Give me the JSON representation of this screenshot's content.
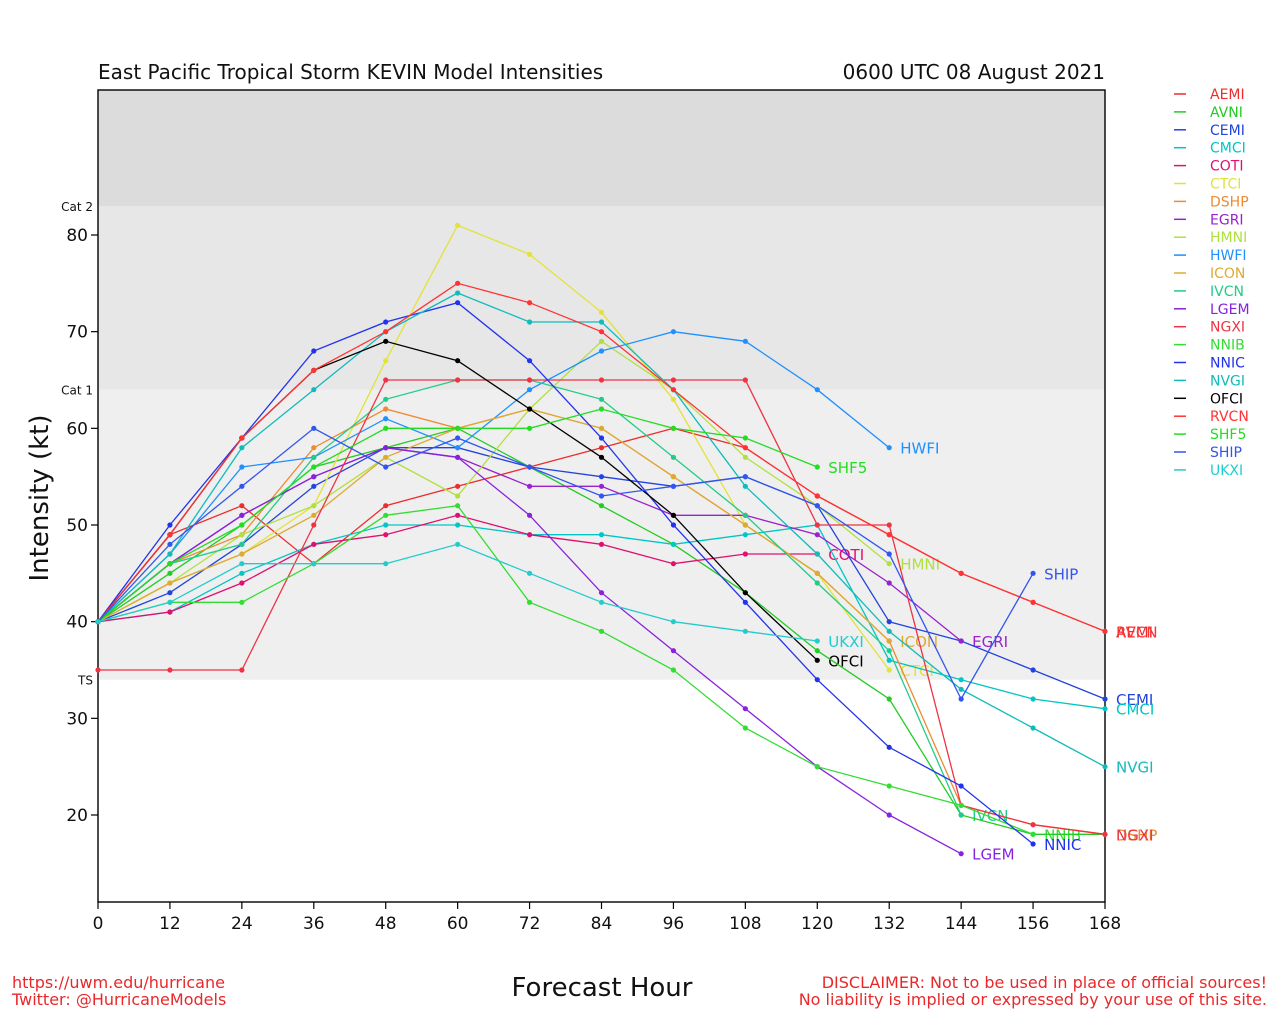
{
  "chart_data": {
    "type": "line",
    "title": "East Pacific Tropical Storm KEVIN Model Intensities",
    "subtitle": "0600 UTC 08 August 2021",
    "xlabel": "Forecast Hour",
    "ylabel": "Intensity (kt)",
    "xlim": [
      0,
      168
    ],
    "ylim": [
      11,
      95
    ],
    "xticks": [
      "0",
      "12",
      "24",
      "36",
      "48",
      "60",
      "72",
      "84",
      "96",
      "108",
      "120",
      "132",
      "144",
      "156",
      "168"
    ],
    "yticks": [
      "20",
      "30",
      "40",
      "50",
      "60",
      "70",
      "80"
    ],
    "bands": [
      {
        "label": "TS",
        "from": 34,
        "to": 64,
        "color": "#efefef"
      },
      {
        "label": "Cat 1",
        "from": 64,
        "to": 83,
        "color": "#e7e7e7"
      },
      {
        "label": "Cat 2",
        "from": 83,
        "to": 95,
        "color": "#dcdcdc"
      }
    ],
    "legend_position": "right",
    "series": [
      {
        "name": "AEMI",
        "color": "#ee2c2c",
        "x": [
          0,
          12,
          24,
          36,
          48,
          60,
          72,
          84,
          96,
          108,
          120,
          132,
          144,
          156,
          168
        ],
        "values": [
          40,
          49,
          52,
          46,
          52,
          54,
          56,
          58,
          60,
          58,
          53,
          49,
          45,
          42,
          39
        ],
        "end_label": "AEMI"
      },
      {
        "name": "AVNI",
        "color": "#22cc22",
        "x": [
          0,
          12,
          24,
          36,
          48,
          60,
          72,
          84,
          96,
          108,
          120,
          132,
          144,
          156,
          168
        ],
        "values": [
          40,
          45,
          50,
          56,
          58,
          60,
          56,
          52,
          48,
          43,
          37,
          32,
          20,
          18,
          18
        ],
        "end_label": ""
      },
      {
        "name": "CEMI",
        "color": "#2244dd",
        "x": [
          0,
          12,
          24,
          36,
          48,
          60,
          72,
          84,
          96,
          108,
          120,
          132,
          144,
          156,
          168
        ],
        "values": [
          40,
          43,
          48,
          54,
          58,
          58,
          56,
          55,
          54,
          55,
          52,
          40,
          38,
          35,
          32
        ],
        "end_label": "CEMI"
      },
      {
        "name": "CMCI",
        "color": "#00c6c6",
        "x": [
          0,
          12,
          24,
          36,
          48,
          60,
          72,
          84,
          96,
          108,
          120,
          132,
          144,
          156,
          168
        ],
        "values": [
          40,
          41,
          45,
          48,
          50,
          50,
          49,
          49,
          48,
          49,
          50,
          36,
          34,
          32,
          31
        ],
        "end_label": "CMCI"
      },
      {
        "name": "COTI",
        "color": "#e01070",
        "x": [
          0,
          12,
          24,
          36,
          48,
          60,
          72,
          84,
          96,
          108,
          120
        ],
        "values": [
          40,
          41,
          44,
          48,
          49,
          51,
          49,
          48,
          46,
          47,
          47
        ],
        "end_label": "COTI"
      },
      {
        "name": "CTCI",
        "color": "#e2e23a",
        "x": [
          0,
          12,
          24,
          36,
          48,
          60,
          72,
          84,
          96,
          108,
          120,
          132
        ],
        "values": [
          40,
          44,
          47,
          52,
          67,
          81,
          78,
          72,
          63,
          50,
          45,
          35
        ],
        "end_label": "CTCI"
      },
      {
        "name": "DSHP",
        "color": "#ee8a33",
        "x": [
          0,
          12,
          24,
          36,
          48,
          60,
          72,
          84,
          96,
          108,
          120,
          132,
          144,
          156,
          168
        ],
        "values": [
          40,
          46,
          49,
          58,
          62,
          60,
          62,
          60,
          55,
          50,
          45,
          38,
          21,
          19,
          18
        ],
        "end_label": "DSHP"
      },
      {
        "name": "EGRI",
        "color": "#9922cc",
        "x": [
          0,
          12,
          24,
          36,
          48,
          60,
          72,
          84,
          96,
          108,
          120,
          132,
          144
        ],
        "values": [
          40,
          46,
          51,
          55,
          58,
          57,
          54,
          54,
          51,
          51,
          49,
          44,
          38
        ],
        "end_label": "EGRI"
      },
      {
        "name": "HMNI",
        "color": "#b0e040",
        "x": [
          0,
          12,
          24,
          36,
          48,
          60,
          72,
          84,
          96,
          108,
          120,
          132
        ],
        "values": [
          40,
          44,
          49,
          52,
          57,
          53,
          62,
          69,
          64,
          57,
          52,
          46
        ],
        "end_label": "HMNI"
      },
      {
        "name": "HWFI",
        "color": "#1e90ff",
        "x": [
          0,
          12,
          24,
          36,
          48,
          60,
          72,
          84,
          96,
          108,
          120,
          132
        ],
        "values": [
          40,
          47,
          56,
          57,
          61,
          58,
          64,
          68,
          70,
          69,
          64,
          58
        ],
        "end_label": "HWFI"
      },
      {
        "name": "ICON",
        "color": "#ddaa33",
        "x": [
          0,
          12,
          24,
          36,
          48,
          60,
          72,
          84,
          96,
          108,
          120,
          132
        ],
        "values": [
          40,
          44,
          47,
          51,
          57,
          60,
          62,
          60,
          55,
          50,
          45,
          38
        ],
        "end_label": "ICON"
      },
      {
        "name": "IVCN",
        "color": "#22cc88",
        "x": [
          0,
          12,
          24,
          36,
          48,
          60,
          72,
          84,
          96,
          108,
          120,
          132,
          144
        ],
        "values": [
          40,
          46,
          48,
          57,
          63,
          65,
          65,
          63,
          57,
          51,
          44,
          37,
          20
        ],
        "end_label": "IVCN"
      },
      {
        "name": "LGEM",
        "color": "#8822dd",
        "x": [
          0,
          12,
          24,
          36,
          48,
          60,
          72,
          84,
          96,
          108,
          120,
          132,
          144
        ],
        "values": [
          40,
          46,
          51,
          55,
          58,
          57,
          51,
          43,
          37,
          31,
          25,
          20,
          16
        ],
        "end_label": "LGEM"
      },
      {
        "name": "NGXI",
        "color": "#ee3344",
        "x": [
          0,
          12,
          24,
          36,
          48,
          60,
          72,
          84,
          96,
          108,
          120,
          132,
          144,
          156,
          168
        ],
        "values": [
          35,
          35,
          35,
          50,
          65,
          65,
          65,
          65,
          65,
          65,
          50,
          50,
          21,
          19,
          18
        ],
        "end_label": "NGXI"
      },
      {
        "name": "NNIB",
        "color": "#33dd33",
        "x": [
          0,
          12,
          24,
          36,
          48,
          60,
          72,
          84,
          96,
          108,
          120,
          132,
          144,
          156
        ],
        "values": [
          40,
          42,
          42,
          46,
          51,
          52,
          42,
          39,
          35,
          29,
          25,
          23,
          21,
          18
        ],
        "end_label": "NNIB"
      },
      {
        "name": "NNIC",
        "color": "#2233ee",
        "x": [
          0,
          12,
          24,
          36,
          48,
          60,
          72,
          84,
          96,
          108,
          120,
          132,
          144,
          156
        ],
        "values": [
          40,
          50,
          59,
          68,
          71,
          73,
          67,
          59,
          50,
          42,
          34,
          27,
          23,
          17
        ],
        "end_label": "NNIC"
      },
      {
        "name": "NVGI",
        "color": "#11bbbb",
        "x": [
          0,
          12,
          24,
          36,
          48,
          60,
          72,
          84,
          96,
          108,
          120,
          132,
          144,
          156,
          168
        ],
        "values": [
          40,
          47,
          58,
          64,
          70,
          74,
          71,
          71,
          64,
          54,
          47,
          39,
          33,
          29,
          25
        ],
        "end_label": "NVGI"
      },
      {
        "name": "OFCI",
        "color": "#000000",
        "x": [
          0,
          12,
          24,
          36,
          48,
          60,
          72,
          84,
          96,
          108,
          120
        ],
        "values": [
          40,
          49,
          59,
          66,
          69,
          67,
          62,
          57,
          51,
          43,
          36
        ],
        "end_label": "OFCI"
      },
      {
        "name": "RVCN",
        "color": "#ff3333",
        "x": [
          0,
          12,
          24,
          36,
          48,
          60,
          72,
          84,
          96,
          108,
          120,
          132,
          144,
          156,
          168
        ],
        "values": [
          40,
          49,
          59,
          66,
          70,
          75,
          73,
          70,
          64,
          58,
          53,
          49,
          45,
          42,
          39
        ],
        "end_label": "RVCN"
      },
      {
        "name": "SHF5",
        "color": "#22dd22",
        "x": [
          0,
          12,
          24,
          36,
          48,
          60,
          72,
          84,
          96,
          108,
          120
        ],
        "values": [
          40,
          46,
          50,
          56,
          60,
          60,
          60,
          62,
          60,
          59,
          56
        ],
        "end_label": "SHF5"
      },
      {
        "name": "SHIP",
        "color": "#3355ee",
        "x": [
          0,
          12,
          24,
          36,
          48,
          60,
          72,
          84,
          96,
          108,
          120,
          132,
          144,
          156
        ],
        "values": [
          40,
          48,
          54,
          60,
          56,
          59,
          56,
          53,
          54,
          55,
          52,
          47,
          32,
          45
        ],
        "end_label": "SHIP"
      },
      {
        "name": "UKXI",
        "color": "#22cccc",
        "x": [
          0,
          12,
          24,
          36,
          48,
          60,
          72,
          84,
          96,
          108,
          120
        ],
        "values": [
          40,
          42,
          46,
          46,
          46,
          48,
          45,
          42,
          40,
          39,
          38
        ],
        "end_label": "UKXI"
      }
    ]
  },
  "footer": {
    "left_line1": "https://uwm.edu/hurricane",
    "left_line2": "Twitter: @HurricaneModels",
    "right_line1": "DISCLAIMER: Not to be used in place of official sources!",
    "right_line2": "No liability is implied or expressed by your use of this site.",
    "color": "#e8282a"
  }
}
